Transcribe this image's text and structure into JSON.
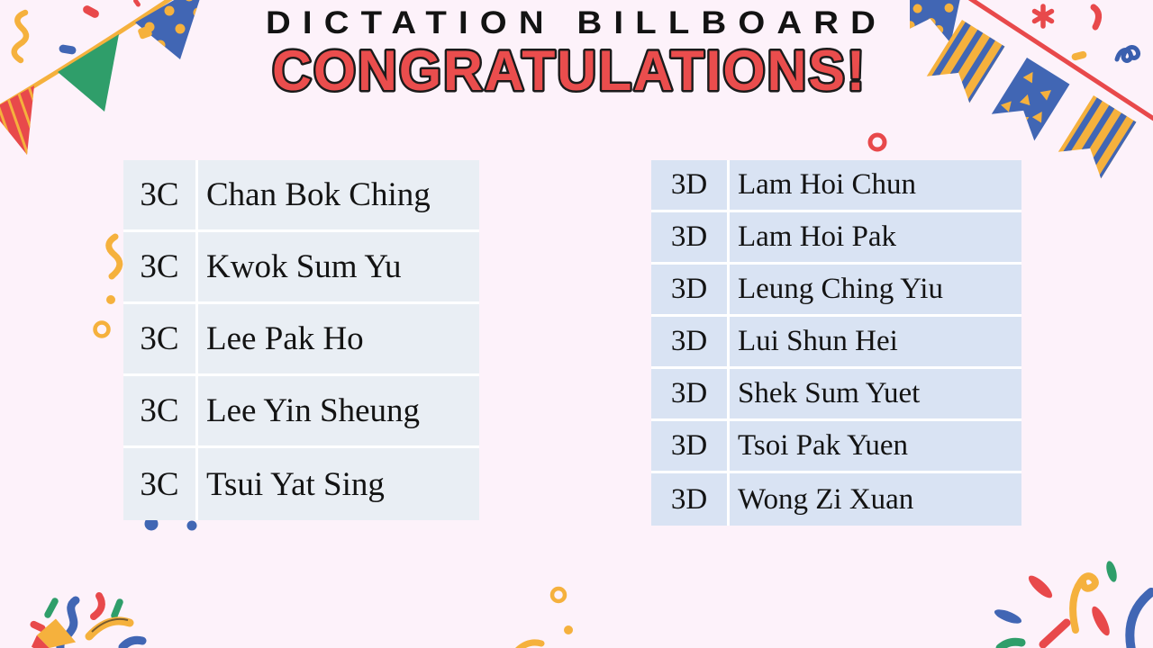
{
  "header": {
    "kicker": "DICTATION BILLBOARD",
    "title": "CONGRATULATIONS!"
  },
  "tables": {
    "left": {
      "rows": [
        {
          "class": "3C",
          "name": "Chan Bok Ching"
        },
        {
          "class": "3C",
          "name": "Kwok Sum Yu"
        },
        {
          "class": "3C",
          "name": "Lee Pak Ho"
        },
        {
          "class": "3C",
          "name": "Lee Yin Sheung"
        },
        {
          "class": "3C",
          "name": "Tsui Yat Sing"
        }
      ]
    },
    "right": {
      "rows": [
        {
          "class": "3D",
          "name": "Lam Hoi Chun"
        },
        {
          "class": "3D",
          "name": "Lam Hoi Pak"
        },
        {
          "class": "3D",
          "name": "Leung Ching Yiu"
        },
        {
          "class": "3D",
          "name": "Lui Shun Hei"
        },
        {
          "class": "3D",
          "name": "Shek Sum Yuet"
        },
        {
          "class": "3D",
          "name": "Tsoi Pak Yuen"
        },
        {
          "class": "3D",
          "name": "Wong Zi Xuan"
        }
      ]
    }
  },
  "colors": {
    "background": "#fdf2fa",
    "left_table_row": "#e9eef4",
    "right_table_row": "#d9e3f3",
    "divider": "#ffffff",
    "title_text": "#131313",
    "congrats_fill": "#ea4d4d",
    "congrats_outline": "#1b1b1b",
    "accent_red": "#e8494b",
    "accent_yellow": "#f5b13d",
    "accent_green": "#2f9e6a",
    "accent_blue": "#4166b4"
  },
  "decorations": [
    "bunting-top-left",
    "bunting-top-right",
    "confetti-popper-bottom-left",
    "firework-burst-bottom-right",
    "confetti-sprinkles"
  ]
}
